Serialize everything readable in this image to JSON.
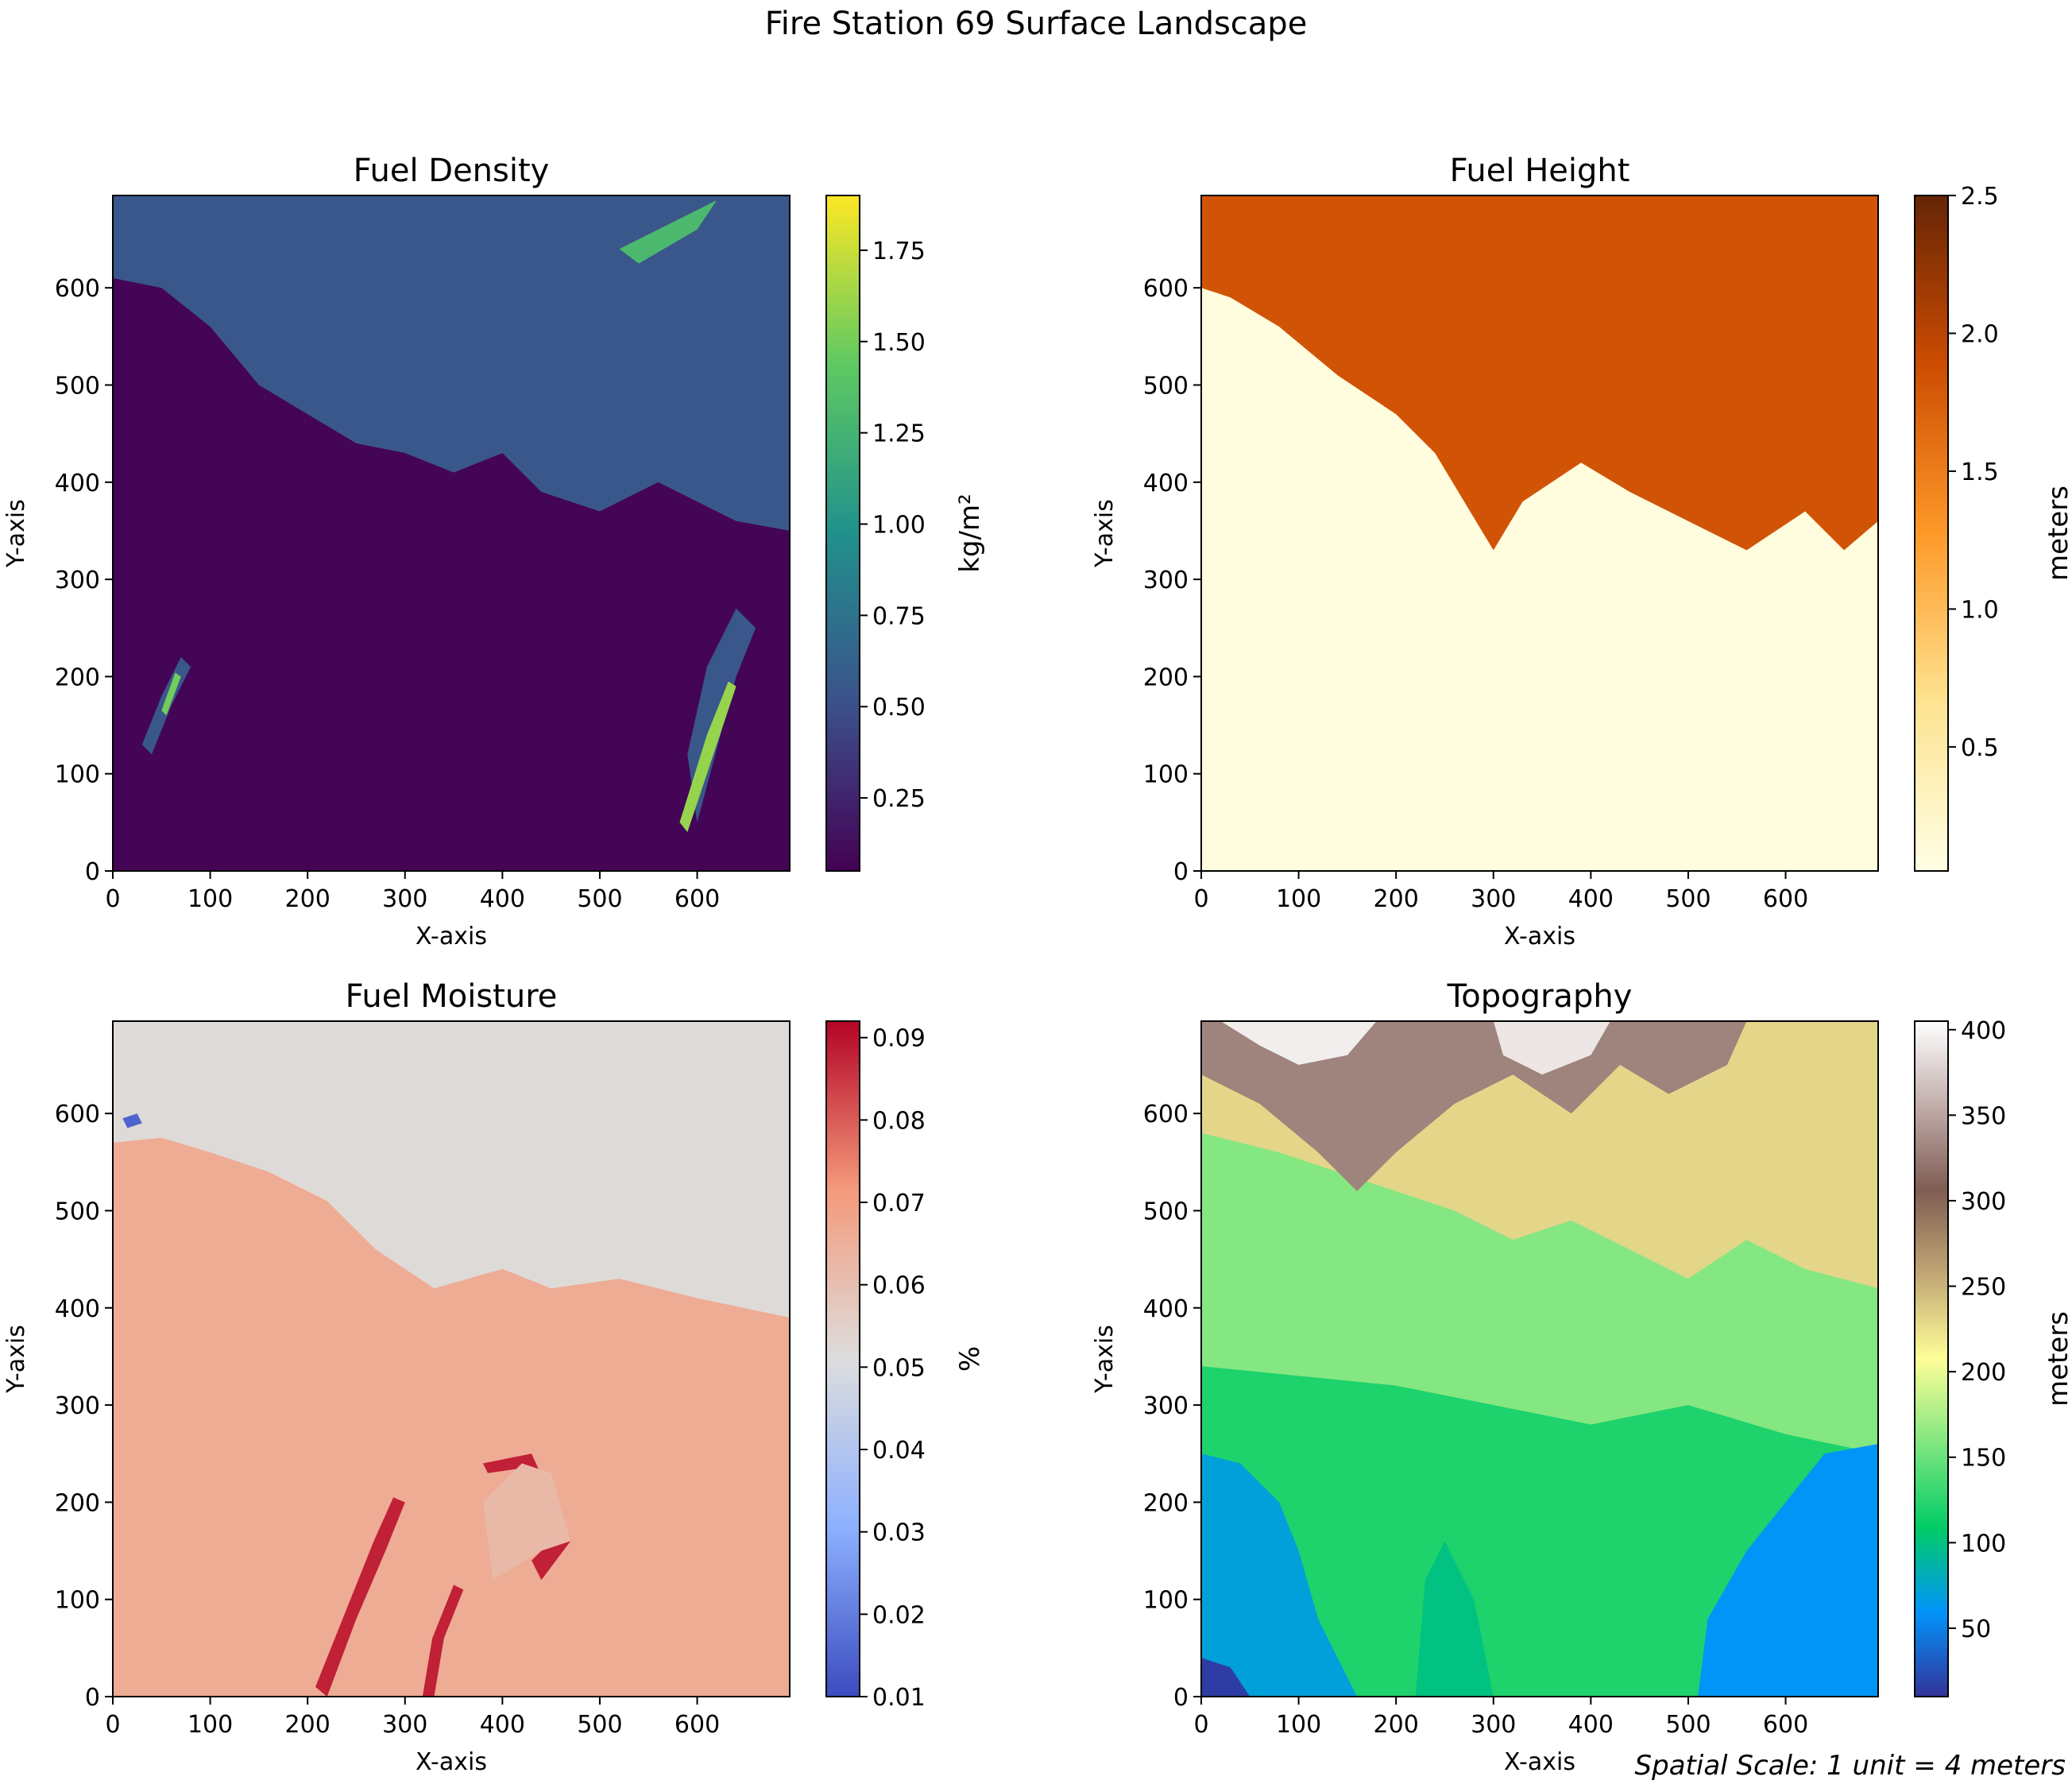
{
  "figure": {
    "title": "Fire Station 69 Surface Landscape",
    "scale_note": "Spatial Scale: 1 unit = 4 meters"
  },
  "chart_data": [
    {
      "type": "heatmap",
      "title": "Fuel Density",
      "xlabel": "X-axis",
      "ylabel": "Y-axis",
      "xlim": [
        0,
        695
      ],
      "ylim": [
        0,
        695
      ],
      "xticks": [
        0,
        100,
        200,
        300,
        400,
        500,
        600
      ],
      "yticks": [
        0,
        100,
        200,
        300,
        400,
        500,
        600
      ],
      "colormap": "viridis",
      "colormap_stops": [
        "#440154",
        "#3b528b",
        "#21918c",
        "#5ec962",
        "#fde725"
      ],
      "colorbar": {
        "label": "kg/m²",
        "range": [
          0.05,
          1.9
        ],
        "ticks": [
          0.25,
          0.5,
          0.75,
          1.0,
          1.25,
          1.5,
          1.75
        ],
        "tick_labels": [
          "0.25",
          "0.50",
          "0.75",
          "1.00",
          "1.25",
          "1.50",
          "1.75"
        ]
      },
      "regions": [
        {
          "description": "upper band (y > ~400)",
          "value": 0.55
        },
        {
          "description": "lower region",
          "value": 0.07
        },
        {
          "description": "streaks near x~620, y 0-200",
          "value": 1.6
        }
      ]
    },
    {
      "type": "heatmap",
      "title": "Fuel Height",
      "xlabel": "X-axis",
      "ylabel": "Y-axis",
      "xlim": [
        0,
        695
      ],
      "ylim": [
        0,
        695
      ],
      "xticks": [
        0,
        100,
        200,
        300,
        400,
        500,
        600
      ],
      "yticks": [
        0,
        100,
        200,
        300,
        400,
        500,
        600
      ],
      "colormap": "YlOrBr",
      "colormap_stops": [
        "#ffffe5",
        "#fee391",
        "#fe9929",
        "#cc4c02",
        "#662506"
      ],
      "colorbar": {
        "label": "meters",
        "range": [
          0.05,
          2.5
        ],
        "ticks": [
          0.5,
          1.0,
          1.5,
          2.0,
          2.5
        ],
        "tick_labels": [
          "0.5",
          "1.0",
          "1.5",
          "2.0",
          "2.5"
        ]
      },
      "regions": [
        {
          "description": "upper band (y > ~350)",
          "value": 1.83
        },
        {
          "description": "lower region",
          "value": 0.1
        }
      ]
    },
    {
      "type": "heatmap",
      "title": "Fuel Moisture",
      "xlabel": "X-axis",
      "ylabel": "Y-axis",
      "xlim": [
        0,
        695
      ],
      "ylim": [
        0,
        695
      ],
      "xticks": [
        0,
        100,
        200,
        300,
        400,
        500,
        600
      ],
      "yticks": [
        0,
        100,
        200,
        300,
        400,
        500,
        600
      ],
      "colormap": "coolwarm",
      "colormap_stops": [
        "#3b4cc0",
        "#8db0fe",
        "#dddddd",
        "#f49a7b",
        "#b40426"
      ],
      "colorbar": {
        "label": "%",
        "range": [
          0.01,
          0.092
        ],
        "ticks": [
          0.01,
          0.02,
          0.03,
          0.04,
          0.05,
          0.06,
          0.07,
          0.08,
          0.09
        ],
        "tick_labels": [
          "0.01",
          "0.02",
          "0.03",
          "0.04",
          "0.05",
          "0.06",
          "0.07",
          "0.08",
          "0.09"
        ]
      },
      "regions": [
        {
          "description": "upper band",
          "value": 0.052
        },
        {
          "description": "lower region",
          "value": 0.066
        },
        {
          "description": "burn-scar edges near x 200-480, y 0-250",
          "value": 0.088
        },
        {
          "description": "spot near x~20, y~600",
          "value": 0.015
        }
      ]
    },
    {
      "type": "heatmap",
      "title": "Topography",
      "xlabel": "X-axis",
      "ylabel": "Y-axis",
      "xlim": [
        0,
        695
      ],
      "ylim": [
        0,
        695
      ],
      "xticks": [
        0,
        100,
        200,
        300,
        400,
        500,
        600
      ],
      "yticks": [
        0,
        100,
        200,
        300,
        400,
        500,
        600
      ],
      "colormap": "terrain",
      "colormap_stops": [
        "#333399",
        "#0294fa",
        "#01cc66",
        "#80e680",
        "#fefe98",
        "#c2a774",
        "#805c54",
        "#c1adaa",
        "#ffffff"
      ],
      "colorbar": {
        "label": "meters",
        "range": [
          10,
          405
        ],
        "ticks": [
          50,
          100,
          150,
          200,
          250,
          300,
          350,
          400
        ],
        "tick_labels": [
          "50",
          "100",
          "150",
          "200",
          "250",
          "300",
          "350",
          "400"
        ]
      },
      "regions": [
        {
          "description": "top ridges",
          "value": 380
        },
        {
          "description": "middle slopes",
          "value": 180
        },
        {
          "description": "lower valley",
          "value": 80
        },
        {
          "description": "bottom-left corner",
          "value": 15
        }
      ]
    }
  ]
}
